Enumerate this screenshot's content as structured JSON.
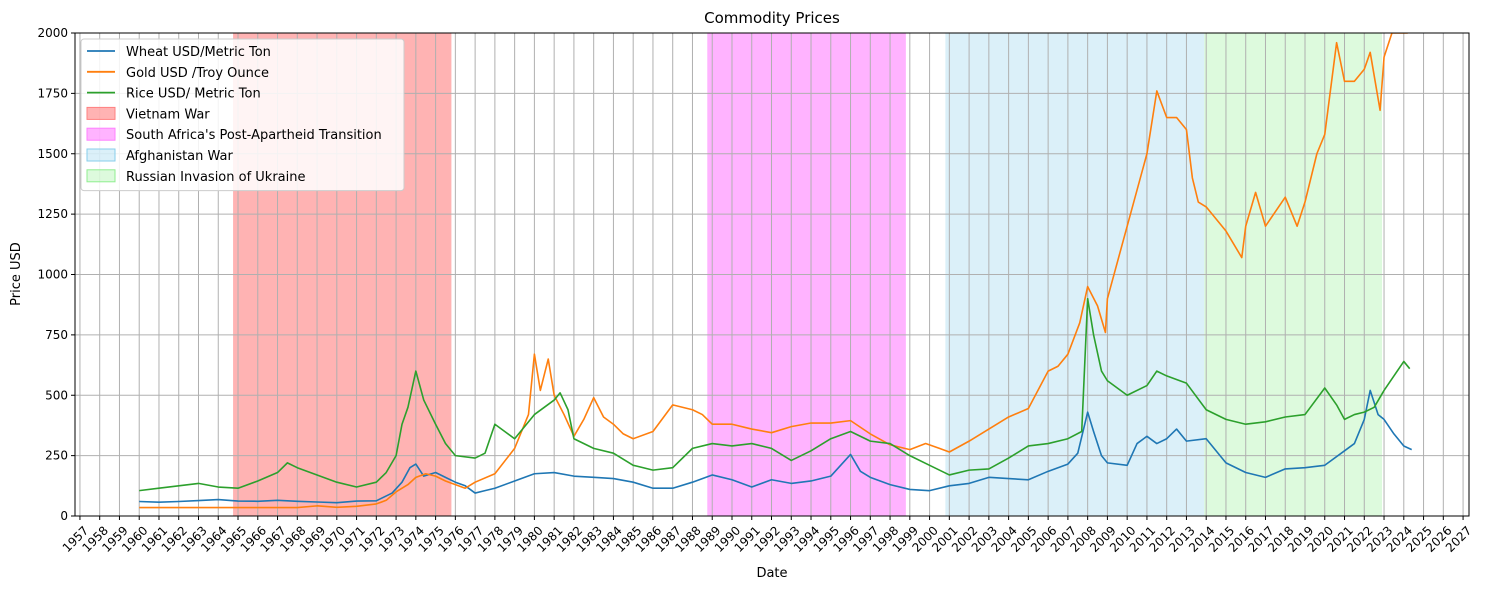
{
  "chart_data": {
    "type": "line",
    "title": "Commodity Prices",
    "xlabel": "Date",
    "ylabel": "Price USD",
    "xlim": [
      1956.75,
      2027.3
    ],
    "ylim": [
      0,
      2000
    ],
    "yticks": [
      0,
      250,
      500,
      750,
      1000,
      1250,
      1500,
      1750,
      2000
    ],
    "xticks": [
      1957,
      1958,
      1959,
      1960,
      1961,
      1962,
      1963,
      1964,
      1965,
      1966,
      1967,
      1968,
      1969,
      1970,
      1971,
      1972,
      1973,
      1974,
      1975,
      1976,
      1977,
      1978,
      1979,
      1980,
      1981,
      1982,
      1983,
      1984,
      1985,
      1986,
      1987,
      1988,
      1989,
      1990,
      1991,
      1992,
      1993,
      1994,
      1995,
      1996,
      1997,
      1998,
      1999,
      2000,
      2001,
      2002,
      2003,
      2004,
      2005,
      2006,
      2007,
      2008,
      2009,
      2010,
      2011,
      2012,
      2013,
      2014,
      2015,
      2016,
      2017,
      2018,
      2019,
      2020,
      2021,
      2022,
      2023,
      2024,
      2025,
      2026,
      2027
    ],
    "grid": true,
    "legend_position": "top-left",
    "series": [
      {
        "name": "Wheat USD/Metric Ton",
        "color": "#1f77b4",
        "points": [
          [
            1960.0,
            60
          ],
          [
            1961.0,
            57
          ],
          [
            1962.0,
            60
          ],
          [
            1963.0,
            64
          ],
          [
            1964.0,
            68
          ],
          [
            1965.0,
            62
          ],
          [
            1966.0,
            61
          ],
          [
            1967.0,
            65
          ],
          [
            1968.0,
            61
          ],
          [
            1969.0,
            58
          ],
          [
            1970.0,
            55
          ],
          [
            1971.0,
            62
          ],
          [
            1972.0,
            63
          ],
          [
            1972.8,
            95
          ],
          [
            1973.3,
            140
          ],
          [
            1973.7,
            200
          ],
          [
            1974.0,
            215
          ],
          [
            1974.4,
            165
          ],
          [
            1975.0,
            180
          ],
          [
            1975.5,
            160
          ],
          [
            1976.0,
            140
          ],
          [
            1976.5,
            125
          ],
          [
            1977.0,
            95
          ],
          [
            1977.5,
            105
          ],
          [
            1978.0,
            115
          ],
          [
            1979.0,
            145
          ],
          [
            1980.0,
            175
          ],
          [
            1981.0,
            180
          ],
          [
            1982.0,
            165
          ],
          [
            1983.0,
            160
          ],
          [
            1984.0,
            155
          ],
          [
            1985.0,
            140
          ],
          [
            1986.0,
            115
          ],
          [
            1987.0,
            115
          ],
          [
            1988.0,
            140
          ],
          [
            1989.0,
            170
          ],
          [
            1990.0,
            150
          ],
          [
            1991.0,
            120
          ],
          [
            1992.0,
            150
          ],
          [
            1993.0,
            135
          ],
          [
            1994.0,
            145
          ],
          [
            1995.0,
            165
          ],
          [
            1996.0,
            255
          ],
          [
            1996.5,
            185
          ],
          [
            1997.0,
            160
          ],
          [
            1998.0,
            130
          ],
          [
            1999.0,
            110
          ],
          [
            2000.0,
            105
          ],
          [
            2001.0,
            125
          ],
          [
            2002.0,
            135
          ],
          [
            2003.0,
            160
          ],
          [
            2004.0,
            155
          ],
          [
            2005.0,
            150
          ],
          [
            2006.0,
            185
          ],
          [
            2007.0,
            215
          ],
          [
            2007.5,
            260
          ],
          [
            2008.0,
            430
          ],
          [
            2008.3,
            350
          ],
          [
            2008.7,
            250
          ],
          [
            2009.0,
            220
          ],
          [
            2010.0,
            210
          ],
          [
            2010.5,
            300
          ],
          [
            2011.0,
            330
          ],
          [
            2011.5,
            300
          ],
          [
            2012.0,
            320
          ],
          [
            2012.5,
            360
          ],
          [
            2013.0,
            310
          ],
          [
            2014.0,
            320
          ],
          [
            2015.0,
            220
          ],
          [
            2016.0,
            180
          ],
          [
            2017.0,
            160
          ],
          [
            2018.0,
            195
          ],
          [
            2019.0,
            200
          ],
          [
            2020.0,
            210
          ],
          [
            2021.0,
            270
          ],
          [
            2021.5,
            300
          ],
          [
            2022.0,
            400
          ],
          [
            2022.3,
            520
          ],
          [
            2022.7,
            420
          ],
          [
            2023.0,
            400
          ],
          [
            2023.5,
            340
          ],
          [
            2024.0,
            290
          ],
          [
            2024.4,
            275
          ]
        ]
      },
      {
        "name": "Gold USD /Troy Ounce",
        "color": "#ff7f0e",
        "points": [
          [
            1960.0,
            35
          ],
          [
            1965.0,
            35
          ],
          [
            1968.0,
            35
          ],
          [
            1969.0,
            42
          ],
          [
            1970.0,
            36
          ],
          [
            1971.0,
            40
          ],
          [
            1972.0,
            50
          ],
          [
            1972.5,
            65
          ],
          [
            1973.0,
            100
          ],
          [
            1973.6,
            130
          ],
          [
            1974.0,
            160
          ],
          [
            1974.5,
            175
          ],
          [
            1975.0,
            165
          ],
          [
            1975.5,
            145
          ],
          [
            1976.0,
            130
          ],
          [
            1976.5,
            115
          ],
          [
            1977.0,
            140
          ],
          [
            1978.0,
            175
          ],
          [
            1979.0,
            280
          ],
          [
            1979.7,
            420
          ],
          [
            1980.0,
            670
          ],
          [
            1980.3,
            520
          ],
          [
            1980.7,
            650
          ],
          [
            1981.0,
            500
          ],
          [
            1981.5,
            420
          ],
          [
            1982.0,
            330
          ],
          [
            1982.5,
            400
          ],
          [
            1983.0,
            490
          ],
          [
            1983.5,
            410
          ],
          [
            1984.0,
            380
          ],
          [
            1984.5,
            340
          ],
          [
            1985.0,
            320
          ],
          [
            1986.0,
            350
          ],
          [
            1987.0,
            460
          ],
          [
            1988.0,
            440
          ],
          [
            1988.5,
            420
          ],
          [
            1989.0,
            380
          ],
          [
            1990.0,
            380
          ],
          [
            1991.0,
            360
          ],
          [
            1992.0,
            345
          ],
          [
            1993.0,
            370
          ],
          [
            1994.0,
            385
          ],
          [
            1995.0,
            385
          ],
          [
            1996.0,
            395
          ],
          [
            1997.0,
            340
          ],
          [
            1998.0,
            295
          ],
          [
            1999.0,
            275
          ],
          [
            1999.8,
            300
          ],
          [
            2000.5,
            280
          ],
          [
            2001.0,
            265
          ],
          [
            2002.0,
            310
          ],
          [
            2003.0,
            360
          ],
          [
            2004.0,
            410
          ],
          [
            2005.0,
            445
          ],
          [
            2006.0,
            600
          ],
          [
            2006.5,
            620
          ],
          [
            2007.0,
            670
          ],
          [
            2007.6,
            800
          ],
          [
            2008.0,
            950
          ],
          [
            2008.5,
            870
          ],
          [
            2008.9,
            760
          ],
          [
            2009.0,
            900
          ],
          [
            2010.0,
            1200
          ],
          [
            2011.0,
            1500
          ],
          [
            2011.5,
            1760
          ],
          [
            2012.0,
            1650
          ],
          [
            2012.5,
            1650
          ],
          [
            2013.0,
            1600
          ],
          [
            2013.3,
            1400
          ],
          [
            2013.6,
            1300
          ],
          [
            2014.0,
            1280
          ],
          [
            2015.0,
            1180
          ],
          [
            2015.8,
            1070
          ],
          [
            2016.0,
            1200
          ],
          [
            2016.5,
            1340
          ],
          [
            2017.0,
            1200
          ],
          [
            2018.0,
            1320
          ],
          [
            2018.6,
            1200
          ],
          [
            2019.0,
            1300
          ],
          [
            2019.6,
            1500
          ],
          [
            2020.0,
            1580
          ],
          [
            2020.6,
            1960
          ],
          [
            2021.0,
            1800
          ],
          [
            2021.5,
            1800
          ],
          [
            2022.0,
            1850
          ],
          [
            2022.3,
            1920
          ],
          [
            2022.8,
            1680
          ],
          [
            2023.0,
            1900
          ],
          [
            2023.4,
            2000
          ],
          [
            2024.0,
            2000
          ],
          [
            2024.2,
            2000
          ]
        ]
      },
      {
        "name": "Rice USD/ Metric Ton",
        "color": "#2ca02c",
        "points": [
          [
            1960.0,
            105
          ],
          [
            1961.0,
            115
          ],
          [
            1962.0,
            125
          ],
          [
            1963.0,
            135
          ],
          [
            1964.0,
            120
          ],
          [
            1965.0,
            115
          ],
          [
            1966.0,
            145
          ],
          [
            1967.0,
            180
          ],
          [
            1967.5,
            220
          ],
          [
            1968.0,
            200
          ],
          [
            1969.0,
            170
          ],
          [
            1970.0,
            140
          ],
          [
            1971.0,
            120
          ],
          [
            1972.0,
            140
          ],
          [
            1972.5,
            180
          ],
          [
            1973.0,
            250
          ],
          [
            1973.3,
            380
          ],
          [
            1973.6,
            450
          ],
          [
            1974.0,
            600
          ],
          [
            1974.4,
            480
          ],
          [
            1975.0,
            380
          ],
          [
            1975.5,
            300
          ],
          [
            1976.0,
            250
          ],
          [
            1977.0,
            240
          ],
          [
            1977.5,
            260
          ],
          [
            1978.0,
            380
          ],
          [
            1978.5,
            350
          ],
          [
            1979.0,
            320
          ],
          [
            1980.0,
            420
          ],
          [
            1981.0,
            480
          ],
          [
            1981.3,
            510
          ],
          [
            1981.7,
            440
          ],
          [
            1982.0,
            320
          ],
          [
            1983.0,
            280
          ],
          [
            1984.0,
            260
          ],
          [
            1985.0,
            210
          ],
          [
            1986.0,
            190
          ],
          [
            1987.0,
            200
          ],
          [
            1988.0,
            280
          ],
          [
            1989.0,
            300
          ],
          [
            1990.0,
            290
          ],
          [
            1991.0,
            300
          ],
          [
            1992.0,
            280
          ],
          [
            1993.0,
            230
          ],
          [
            1994.0,
            270
          ],
          [
            1995.0,
            320
          ],
          [
            1996.0,
            350
          ],
          [
            1997.0,
            310
          ],
          [
            1998.0,
            300
          ],
          [
            1999.0,
            250
          ],
          [
            2000.0,
            210
          ],
          [
            2001.0,
            170
          ],
          [
            2002.0,
            190
          ],
          [
            2003.0,
            195
          ],
          [
            2004.0,
            240
          ],
          [
            2005.0,
            290
          ],
          [
            2006.0,
            300
          ],
          [
            2007.0,
            320
          ],
          [
            2007.7,
            350
          ],
          [
            2008.0,
            900
          ],
          [
            2008.3,
            750
          ],
          [
            2008.7,
            600
          ],
          [
            2009.0,
            560
          ],
          [
            2010.0,
            500
          ],
          [
            2011.0,
            540
          ],
          [
            2011.5,
            600
          ],
          [
            2012.0,
            580
          ],
          [
            2013.0,
            550
          ],
          [
            2014.0,
            440
          ],
          [
            2015.0,
            400
          ],
          [
            2016.0,
            380
          ],
          [
            2017.0,
            390
          ],
          [
            2018.0,
            410
          ],
          [
            2019.0,
            420
          ],
          [
            2020.0,
            530
          ],
          [
            2020.6,
            460
          ],
          [
            2021.0,
            400
          ],
          [
            2021.5,
            420
          ],
          [
            2022.0,
            430
          ],
          [
            2022.5,
            450
          ],
          [
            2023.0,
            520
          ],
          [
            2023.5,
            580
          ],
          [
            2024.0,
            640
          ],
          [
            2024.3,
            610
          ]
        ]
      }
    ],
    "spans": [
      {
        "name": "Vietnam War",
        "from": 1964.75,
        "to": 1975.8,
        "color": "#ff8080",
        "opacity": 0.6
      },
      {
        "name": "South Africa's Post-Apartheid Transition",
        "from": 1988.75,
        "to": 1998.8,
        "color": "#ff80ff",
        "opacity": 0.6
      },
      {
        "name": "Afghanistan War",
        "from": 2000.8,
        "to": 2013.9,
        "color": "#87ceeb",
        "opacity": 0.3
      },
      {
        "name": "Russian Invasion of Ukraine",
        "from": 2013.9,
        "to": 2022.9,
        "color": "#90ee90",
        "opacity": 0.3
      }
    ]
  }
}
